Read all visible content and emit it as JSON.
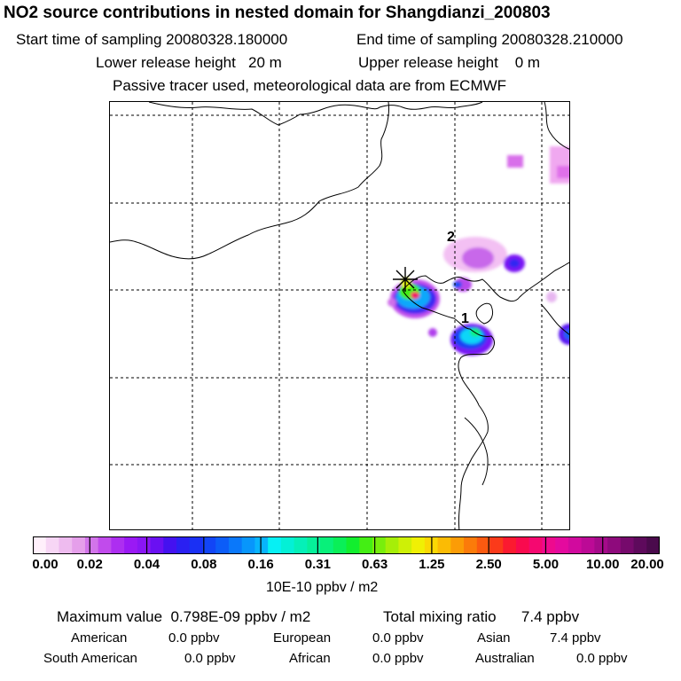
{
  "header": {
    "title": "NO2 source contributions in nested domain for Shangdianzi_200803",
    "start_time": "Start time of sampling 20080328.180000",
    "end_time": "End time of sampling 20080328.210000",
    "lower_height": "Lower release height   20 m",
    "upper_height": "Upper release height    0 m",
    "tracer_note": "Passive tracer used, meteorological data are from ECMWF"
  },
  "map": {
    "markers": [
      {
        "label": "2"
      },
      {
        "label": "1"
      }
    ],
    "colors": {
      "coast": "#000000",
      "grid": "#000000"
    }
  },
  "colorbar": {
    "tick_labels": [
      "0.00",
      "0.02",
      "0.04",
      "0.08",
      "0.16",
      "0.31",
      "0.63",
      "1.25",
      "2.50",
      "5.00",
      "10.00",
      "20.00"
    ],
    "units": "10E-10 ppbv / m2",
    "segments": [
      "#fff0fb",
      "#f7d6f5",
      "#eebbef",
      "#e59fea",
      "#d274ea",
      "#c14bec",
      "#ad2ef0",
      "#9a19f4",
      "#8a16f4",
      "#6a10f2",
      "#4411f0",
      "#2a20f2",
      "#1a30f4",
      "#1245f6",
      "#0c5df8",
      "#0a78fa",
      "#0896fb",
      "#08b4fc",
      "#06f0f4",
      "#04f0d6",
      "#05f0b8",
      "#06f09a",
      "#08f07a",
      "#0aef58",
      "#12ee2e",
      "#44ee14",
      "#78ee0c",
      "#a6ee08",
      "#cef006",
      "#f0f004",
      "#fbd804",
      "#fbbb04",
      "#fb9c06",
      "#fb7b0a",
      "#fb5a10",
      "#fb3a1a",
      "#fb1a30",
      "#f90a4e",
      "#f50870",
      "#ee0a8e",
      "#e40a9e",
      "#d10a9e",
      "#bc0a96",
      "#a50a8a",
      "#8e0a7c",
      "#760a6c",
      "#5e0a5c",
      "#4a0a4c"
    ]
  },
  "stats": {
    "max_value": "Maximum value  0.798E-09 ppbv / m2",
    "total_mixing": "Total mixing ratio      7.4 ppbv",
    "regions": [
      {
        "name": "American",
        "value": "0.0 ppbv"
      },
      {
        "name": "European",
        "value": "0.0 ppbv"
      },
      {
        "name": "Asian",
        "value": "7.4 ppbv"
      },
      {
        "name": "South American",
        "value": "0.0 ppbv"
      },
      {
        "name": "African",
        "value": "0.0 ppbv"
      },
      {
        "name": "Australian",
        "value": "0.0 ppbv"
      }
    ]
  }
}
